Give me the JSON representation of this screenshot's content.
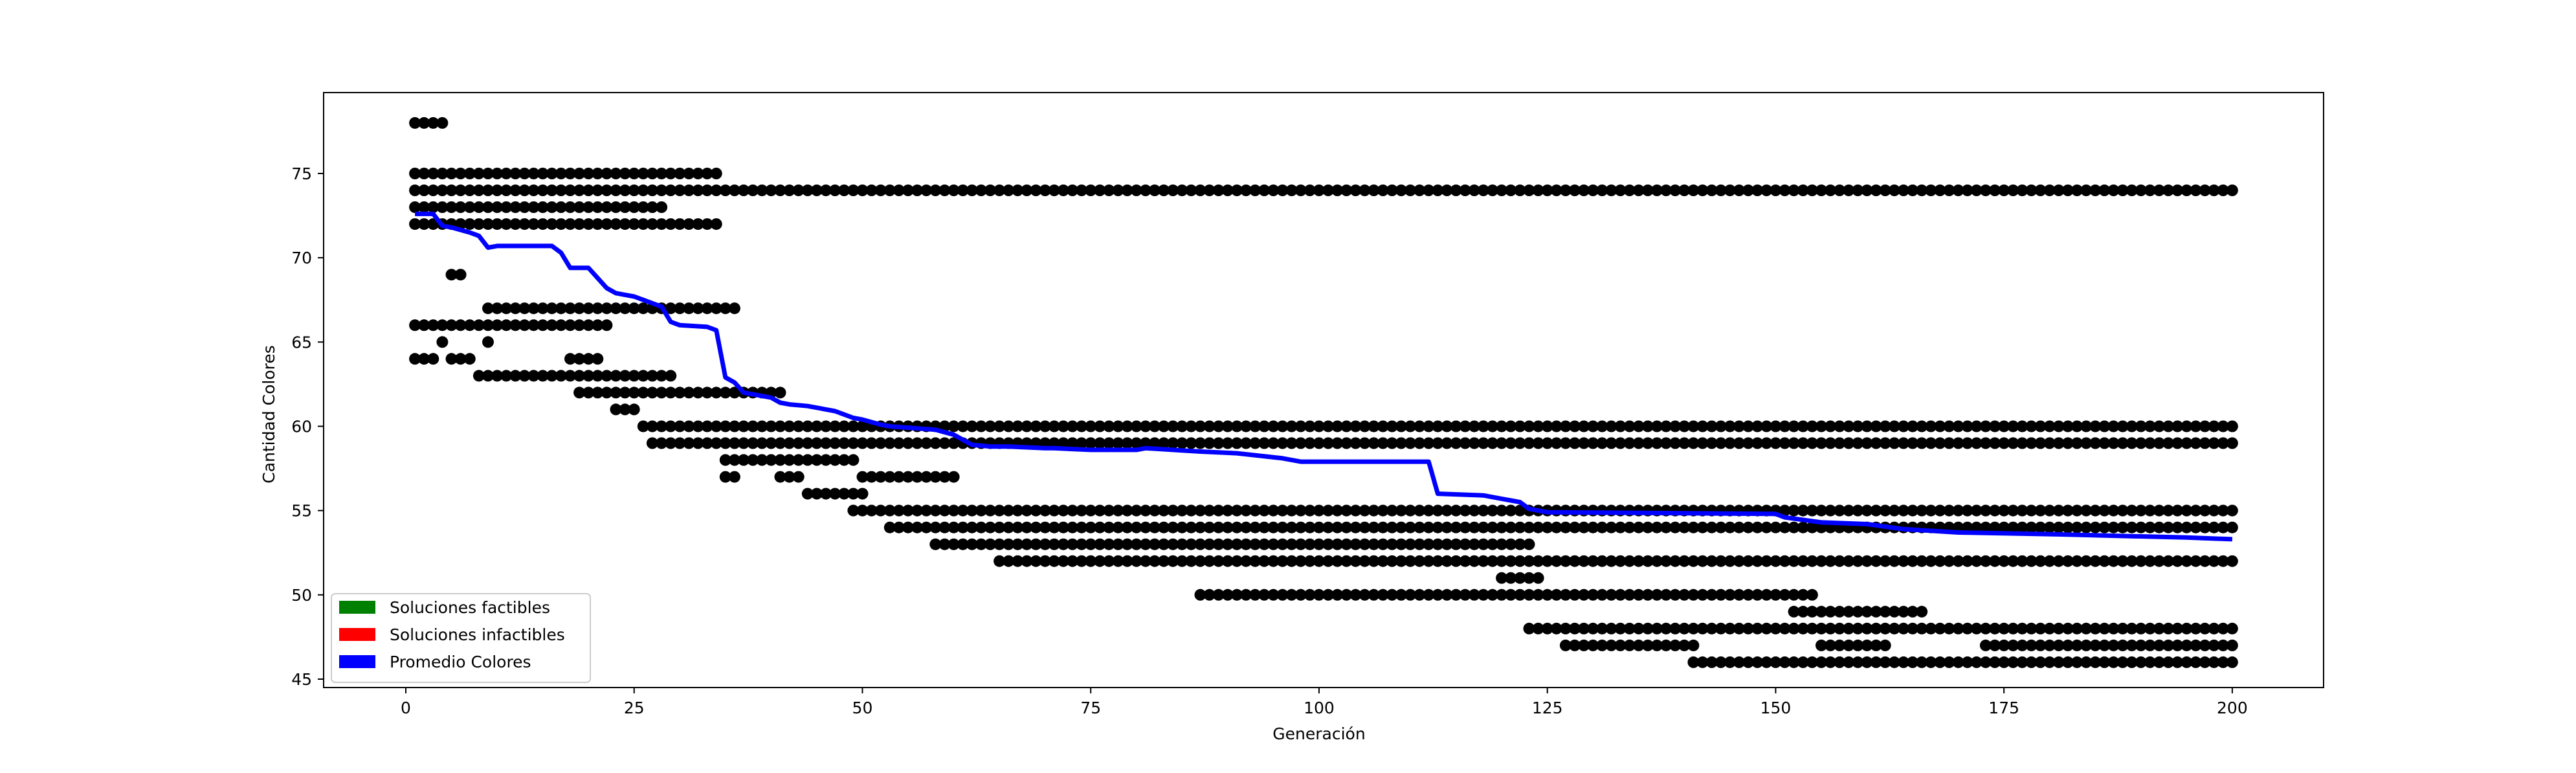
{
  "chart_data": {
    "type": "scatter",
    "title": "",
    "xlabel": "Generación",
    "ylabel": "Cantidad Colores",
    "xlim": [
      -9,
      210
    ],
    "ylim": [
      44.5,
      79.8
    ],
    "xticks": [
      0,
      25,
      50,
      75,
      100,
      125,
      150,
      175,
      200
    ],
    "yticks": [
      45,
      50,
      55,
      60,
      65,
      70,
      75
    ],
    "grid": false,
    "legend_position": "lower-left",
    "legend": [
      {
        "label": "Soluciones factibles",
        "color": "#008000"
      },
      {
        "label": "Soluciones infactibles",
        "color": "#ff0000"
      },
      {
        "label": "Promedio Colores",
        "color": "#0000ff"
      }
    ],
    "scatter_color": "#000000",
    "point_runs": [
      {
        "y": 78,
        "x_from": 1,
        "x_to": 4
      },
      {
        "y": 75,
        "x_from": 1,
        "x_to": 34
      },
      {
        "y": 74,
        "x_from": 1,
        "x_to": 200
      },
      {
        "y": 73,
        "x_from": 1,
        "x_to": 28
      },
      {
        "y": 72,
        "x_from": 1,
        "x_to": 34
      },
      {
        "y": 69,
        "x_from": 5,
        "x_to": 6
      },
      {
        "y": 67,
        "x_from": 9,
        "x_to": 36
      },
      {
        "y": 66,
        "x_from": 1,
        "x_to": 22
      },
      {
        "y": 65,
        "x_from": 4,
        "x_to": 4
      },
      {
        "y": 65,
        "x_from": 9,
        "x_to": 9
      },
      {
        "y": 64,
        "x_from": 1,
        "x_to": 3
      },
      {
        "y": 64,
        "x_from": 5,
        "x_to": 7
      },
      {
        "y": 64,
        "x_from": 18,
        "x_to": 21
      },
      {
        "y": 63,
        "x_from": 8,
        "x_to": 29
      },
      {
        "y": 62,
        "x_from": 19,
        "x_to": 41
      },
      {
        "y": 61,
        "x_from": 23,
        "x_to": 25
      },
      {
        "y": 60,
        "x_from": 26,
        "x_to": 200
      },
      {
        "y": 59,
        "x_from": 27,
        "x_to": 200
      },
      {
        "y": 58,
        "x_from": 35,
        "x_to": 49
      },
      {
        "y": 57,
        "x_from": 35,
        "x_to": 36
      },
      {
        "y": 57,
        "x_from": 41,
        "x_to": 43
      },
      {
        "y": 57,
        "x_from": 50,
        "x_to": 60
      },
      {
        "y": 56,
        "x_from": 44,
        "x_to": 50
      },
      {
        "y": 55,
        "x_from": 49,
        "x_to": 200
      },
      {
        "y": 54,
        "x_from": 53,
        "x_to": 200
      },
      {
        "y": 53,
        "x_from": 58,
        "x_to": 123
      },
      {
        "y": 52,
        "x_from": 65,
        "x_to": 200
      },
      {
        "y": 51,
        "x_from": 120,
        "x_to": 124
      },
      {
        "y": 50,
        "x_from": 87,
        "x_to": 154
      },
      {
        "y": 49,
        "x_from": 152,
        "x_to": 166
      },
      {
        "y": 48,
        "x_from": 123,
        "x_to": 200
      },
      {
        "y": 47,
        "x_from": 127,
        "x_to": 141
      },
      {
        "y": 47,
        "x_from": 155,
        "x_to": 162
      },
      {
        "y": 47,
        "x_from": 173,
        "x_to": 200
      },
      {
        "y": 46,
        "x_from": 141,
        "x_to": 200
      }
    ],
    "series": [
      {
        "name": "Promedio Colores",
        "color": "#0000ff",
        "x": [
          1,
          3,
          4,
          5,
          7,
          8,
          9,
          10,
          16,
          17,
          18,
          20,
          21,
          22,
          23,
          24,
          25,
          26,
          27,
          28,
          29,
          30,
          33,
          34,
          35,
          36,
          37,
          40,
          41,
          42,
          44,
          46,
          47,
          49,
          50,
          52,
          53,
          58,
          60,
          61,
          62,
          64,
          66,
          70,
          71,
          75,
          80,
          81,
          87,
          91,
          96,
          98,
          99,
          112,
          113,
          118,
          120,
          121,
          122,
          123,
          125,
          150,
          151,
          155,
          160,
          164,
          170,
          180,
          195,
          200
        ],
        "y": [
          72.6,
          72.6,
          71.9,
          71.8,
          71.5,
          71.3,
          70.6,
          70.7,
          70.7,
          70.3,
          69.4,
          69.4,
          68.8,
          68.2,
          67.9,
          67.8,
          67.7,
          67.5,
          67.3,
          67.1,
          66.2,
          66.0,
          65.9,
          65.7,
          62.9,
          62.6,
          62.0,
          61.7,
          61.4,
          61.3,
          61.2,
          61.0,
          60.9,
          60.5,
          60.4,
          60.1,
          60.0,
          59.8,
          59.5,
          59.2,
          58.9,
          58.8,
          58.8,
          58.7,
          58.7,
          58.6,
          58.6,
          58.7,
          58.5,
          58.4,
          58.1,
          57.9,
          57.9,
          57.9,
          56.0,
          55.9,
          55.7,
          55.6,
          55.5,
          55.1,
          54.9,
          54.8,
          54.6,
          54.3,
          54.2,
          53.9,
          53.7,
          53.6,
          53.4,
          53.3
        ]
      }
    ]
  }
}
